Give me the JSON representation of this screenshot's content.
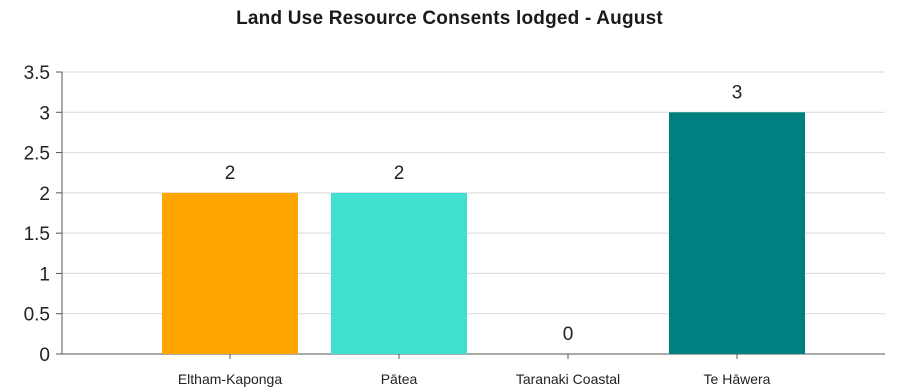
{
  "chart_data": {
    "type": "bar",
    "title": "Land Use Resource Consents lodged - August",
    "xlabel": "",
    "ylabel": "",
    "categories": [
      "Eltham-Kaponga",
      "Pātea",
      "Taranaki Coastal",
      "Te Hāwera"
    ],
    "values": [
      2,
      2,
      0,
      3
    ],
    "data_labels": [
      "2",
      "2",
      "0",
      "3"
    ],
    "colors": [
      "#FFA500",
      "#40E0D0",
      "#2E8B8B",
      "#008080"
    ],
    "ylim": [
      0,
      3.5
    ],
    "yticks": [
      0,
      0.5,
      1,
      1.5,
      2,
      2.5,
      3,
      3.5
    ],
    "ytick_labels": [
      "0",
      "0.5",
      "1",
      "1.5",
      "2",
      "2.5",
      "3",
      "3.5"
    ],
    "grid": true,
    "legend": "none"
  }
}
